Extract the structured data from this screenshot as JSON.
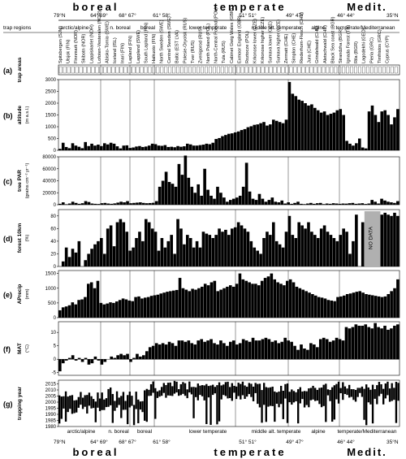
{
  "figure": {
    "biomes": [
      "boreal",
      "temperate",
      "Medit."
    ],
    "latitude_ticks": [
      "79°N",
      "64° 69°",
      "68° 67°",
      "61° 58°",
      "51° 51°",
      "49° 47°",
      "46° 44°",
      "35°N"
    ],
    "region_row_label": "trap regions",
    "regions": [
      "arctic/alpine",
      "n. boreal",
      "boreal",
      "lower temperate",
      "middle alt. temperate",
      "alpine",
      "temperate/Mediterranean"
    ],
    "bottom_regions": [
      "arctic/alpine",
      "n. boreal",
      "boreal",
      "lower temperate",
      "middle alt. temperate",
      "alpine",
      "temperate/Mediterranean"
    ],
    "site_names": [
      "Spitsbergen (SJM)",
      "Ulsjok (FIN)",
      "Finnmark (NOR)",
      "Skibotn (NOR)",
      "Lappiskarlet (NOR)",
      "Lofoten-Vesteralen (NOR)",
      "Abisko-Tornio (SWE)",
      "Iceland (ISL)",
      "Inari (FIN)",
      "Lapland (FIN)",
      "Lappland (SWE)",
      "South Lapland (FIN)",
      "Haikuoto (FIN)",
      "North Sweden (SWE)",
      "Central Sweden (SWE)",
      "Baltic (EST LVA)",
      "Polesie-Oryolsk (RUS)",
      "Tver (RUS)",
      "Zvenigorod (RUS)",
      "North Poland (POL)",
      "North-Central Poland (POL)",
      "Tula (RUS)",
      "Cabinet Gwig Wales (GBR)",
      "Exmoor England (GBR)",
      "Roztocze (POL)",
      "Krkonose lower (CZE)",
      "Krkonose higher (CZE)",
      "Sumava lower (CZE)",
      "Sumava higher (CZE)",
      "Zermatt (CHE)",
      "Simplon (CHE)",
      "Riederhorn-Flesch (CHE)",
      "Jura (CHE)",
      "Grindelwald (CHE)",
      "Aletschwald (CHE)",
      "Black Sea coast (BGR)",
      "Strandzha (BGR)",
      "Ignada Forest (TR)",
      "Rila (BGR)",
      "Lagodekhi (GEO)",
      "Pieria (GRC)",
      "Timfristos (GRC)",
      "Cyprus (CYP)"
    ],
    "no_data_label": "NO DATA",
    "panels": [
      {
        "letter": "(a)",
        "label": "trap areas",
        "unit": ""
      },
      {
        "letter": "(b)",
        "label": "altitude",
        "unit": "(m a.s.l.)"
      },
      {
        "letter": "(c)",
        "label": "tree PAR",
        "unit": "(grains cm⁻² yr⁻¹)"
      },
      {
        "letter": "(d)",
        "label": "forest 10km",
        "unit": "(%)"
      },
      {
        "letter": "(e)",
        "label": "APrecip",
        "unit": "(mm)"
      },
      {
        "letter": "(f)",
        "label": "MAT",
        "unit": "(°C)"
      },
      {
        "letter": "(g)",
        "label": "trapping year",
        "unit": ""
      }
    ]
  },
  "chart_data": [
    {
      "type": "bar",
      "ylabel": "altitude (m a.s.l.)",
      "ylim": [
        0,
        3000
      ],
      "ticks": [
        "0",
        "500",
        "1000",
        "1500",
        "2000",
        "2500",
        "3000"
      ],
      "values": [
        60,
        320,
        140,
        90,
        300,
        200,
        150,
        90,
        350,
        180,
        280,
        200,
        240,
        180,
        300,
        250,
        320,
        280,
        170,
        80,
        200,
        210,
        100,
        120,
        160,
        180,
        140,
        160,
        200,
        280,
        260,
        200,
        190,
        220,
        140,
        150,
        130,
        180,
        150,
        170,
        280,
        250,
        200,
        200,
        220,
        240,
        280,
        260,
        320,
        480,
        520,
        600,
        650,
        700,
        720,
        760,
        800,
        860,
        900,
        980,
        1020,
        1080,
        1100,
        1150,
        1200,
        1050,
        1100,
        1300,
        1250,
        1200,
        1150,
        1300,
        2900,
        2400,
        2300,
        2150,
        2100,
        2000,
        1900,
        1950,
        1800,
        1700,
        1600,
        1650,
        1500,
        1550,
        1600,
        1700,
        1750,
        1500,
        400,
        280,
        200,
        300,
        500,
        120,
        80,
        1650,
        1900,
        1500,
        1200,
        1650,
        1700,
        1500,
        1100,
        1400,
        1750
      ]
    },
    {
      "type": "bar",
      "ylabel": "tree PAR (grains cm⁻² yr⁻¹)",
      "ylim": [
        0,
        80000
      ],
      "ticks": [
        "0",
        "20000",
        "40000",
        "60000",
        "80000"
      ],
      "values": [
        1500,
        4000,
        800,
        2000,
        5000,
        3000,
        1500,
        2500,
        6000,
        4500,
        2000,
        1500,
        1200,
        2500,
        3000,
        2000,
        1500,
        2200,
        3500,
        5000,
        4000,
        6000,
        2500,
        3000,
        3500,
        4000,
        3000,
        2500,
        2800,
        3200,
        6000,
        30000,
        40000,
        55000,
        38000,
        35000,
        30000,
        68000,
        50000,
        82000,
        45000,
        30000,
        20000,
        34000,
        15000,
        60000,
        25000,
        15000,
        10000,
        30000,
        20000,
        12000,
        5000,
        8000,
        10000,
        12000,
        15000,
        30000,
        70000,
        22000,
        10000,
        8000,
        18000,
        10000,
        5000,
        8000,
        12000,
        5000,
        4000,
        7000,
        2000,
        4000,
        1500,
        3000,
        5000,
        1500,
        1000,
        2000,
        3000,
        1500,
        2500,
        3000,
        1000,
        2000,
        1500,
        2500,
        2000,
        1500,
        2000,
        1800,
        2500,
        3000,
        1500,
        2000,
        2500,
        1200,
        2000,
        8000,
        5000,
        2000,
        10000,
        7000,
        5000,
        4000,
        3000,
        6000
      ]
    },
    {
      "type": "bar",
      "ylabel": "forest 10km (%)",
      "ylim": [
        0,
        90
      ],
      "ticks": [
        "0",
        "20",
        "40",
        "60",
        "80"
      ],
      "no_data_range": [
        96,
        100
      ],
      "values": [
        0,
        8,
        30,
        15,
        28,
        22,
        40,
        0,
        10,
        20,
        28,
        35,
        40,
        45,
        20,
        60,
        65,
        32,
        70,
        75,
        70,
        55,
        25,
        30,
        45,
        55,
        40,
        75,
        70,
        60,
        55,
        25,
        45,
        30,
        40,
        50,
        20,
        75,
        60,
        35,
        50,
        45,
        30,
        40,
        30,
        55,
        52,
        50,
        45,
        50,
        60,
        55,
        58,
        50,
        60,
        62,
        70,
        65,
        60,
        55,
        40,
        30,
        25,
        20,
        45,
        55,
        50,
        70,
        40,
        35,
        30,
        55,
        80,
        50,
        45,
        70,
        65,
        60,
        70,
        55,
        50,
        45,
        60,
        65,
        55,
        50,
        45,
        40,
        50,
        60,
        55,
        20,
        40,
        82,
        0,
        70,
        75,
        0,
        0,
        0,
        0,
        82,
        85,
        82,
        80,
        85,
        80
      ]
    },
    {
      "type": "bar",
      "ylabel": "APrecip (mm)",
      "ylim": [
        0,
        1600
      ],
      "ticks": [
        "0",
        "500",
        "1000",
        "1500"
      ],
      "values": [
        250,
        350,
        380,
        420,
        520,
        450,
        600,
        620,
        700,
        1150,
        1200,
        1000,
        1250,
        500,
        450,
        480,
        520,
        500,
        550,
        600,
        650,
        620,
        580,
        560,
        700,
        720,
        650,
        680,
        700,
        740,
        760,
        780,
        820,
        850,
        880,
        900,
        920,
        940,
        1350,
        1000,
        950,
        900,
        980,
        950,
        1000,
        1050,
        1150,
        1100,
        1200,
        1250,
        900,
        950,
        1000,
        1050,
        1100,
        1050,
        1150,
        1500,
        1300,
        1250,
        1200,
        1150,
        1150,
        1100,
        1250,
        1350,
        1400,
        1500,
        1300,
        1200,
        1150,
        1100,
        1250,
        1300,
        1200,
        1050,
        1000,
        950,
        900,
        850,
        800,
        750,
        700,
        680,
        650,
        600,
        580,
        560,
        700,
        720,
        750,
        800,
        820,
        850,
        880,
        900,
        850,
        800,
        780,
        760,
        740,
        720,
        700,
        720,
        800,
        900,
        1000,
        1300
      ]
    },
    {
      "type": "bar",
      "ylabel": "MAT (°C)",
      "ylim": [
        -6,
        14
      ],
      "ticks": [
        "-5",
        "0",
        "5",
        "10"
      ],
      "values": [
        -4.5,
        -1.5,
        -0.5,
        0.5,
        1.5,
        -0.5,
        0.5,
        -1,
        0.5,
        -2,
        -1.5,
        1,
        -0.5,
        -2,
        -1,
        0,
        1,
        0.5,
        1.5,
        2,
        1.5,
        2,
        -1,
        0.5,
        2,
        1,
        1.5,
        3,
        4.5,
        5,
        6,
        5.5,
        6,
        5.5,
        6.5,
        6,
        5,
        7,
        7,
        6.5,
        7,
        6,
        5.5,
        7,
        7.5,
        6.5,
        7,
        7.5,
        6,
        5.5,
        7,
        6,
        5,
        6.5,
        7,
        5.5,
        6,
        7.5,
        7,
        6.5,
        8,
        7,
        7,
        7.5,
        8,
        7.5,
        6.5,
        7,
        6,
        6.5,
        8,
        7,
        6.5,
        5,
        3.5,
        5.5,
        4,
        3.5,
        6,
        5.5,
        4.5,
        7.5,
        8,
        7.5,
        6.5,
        7,
        8,
        7.5,
        7,
        12,
        11.5,
        12,
        13,
        12.5,
        12.5,
        13,
        12,
        11.5,
        13.5,
        12,
        11.5,
        12.5,
        11,
        11.5,
        12.5,
        13
      ]
    },
    {
      "type": "scatter",
      "ylabel": "trapping year",
      "ylim": [
        1980,
        2018
      ],
      "ticks": [
        "1980",
        "1985",
        "1990",
        "1995",
        "2000",
        "2005",
        "2010",
        "2015"
      ]
    }
  ]
}
